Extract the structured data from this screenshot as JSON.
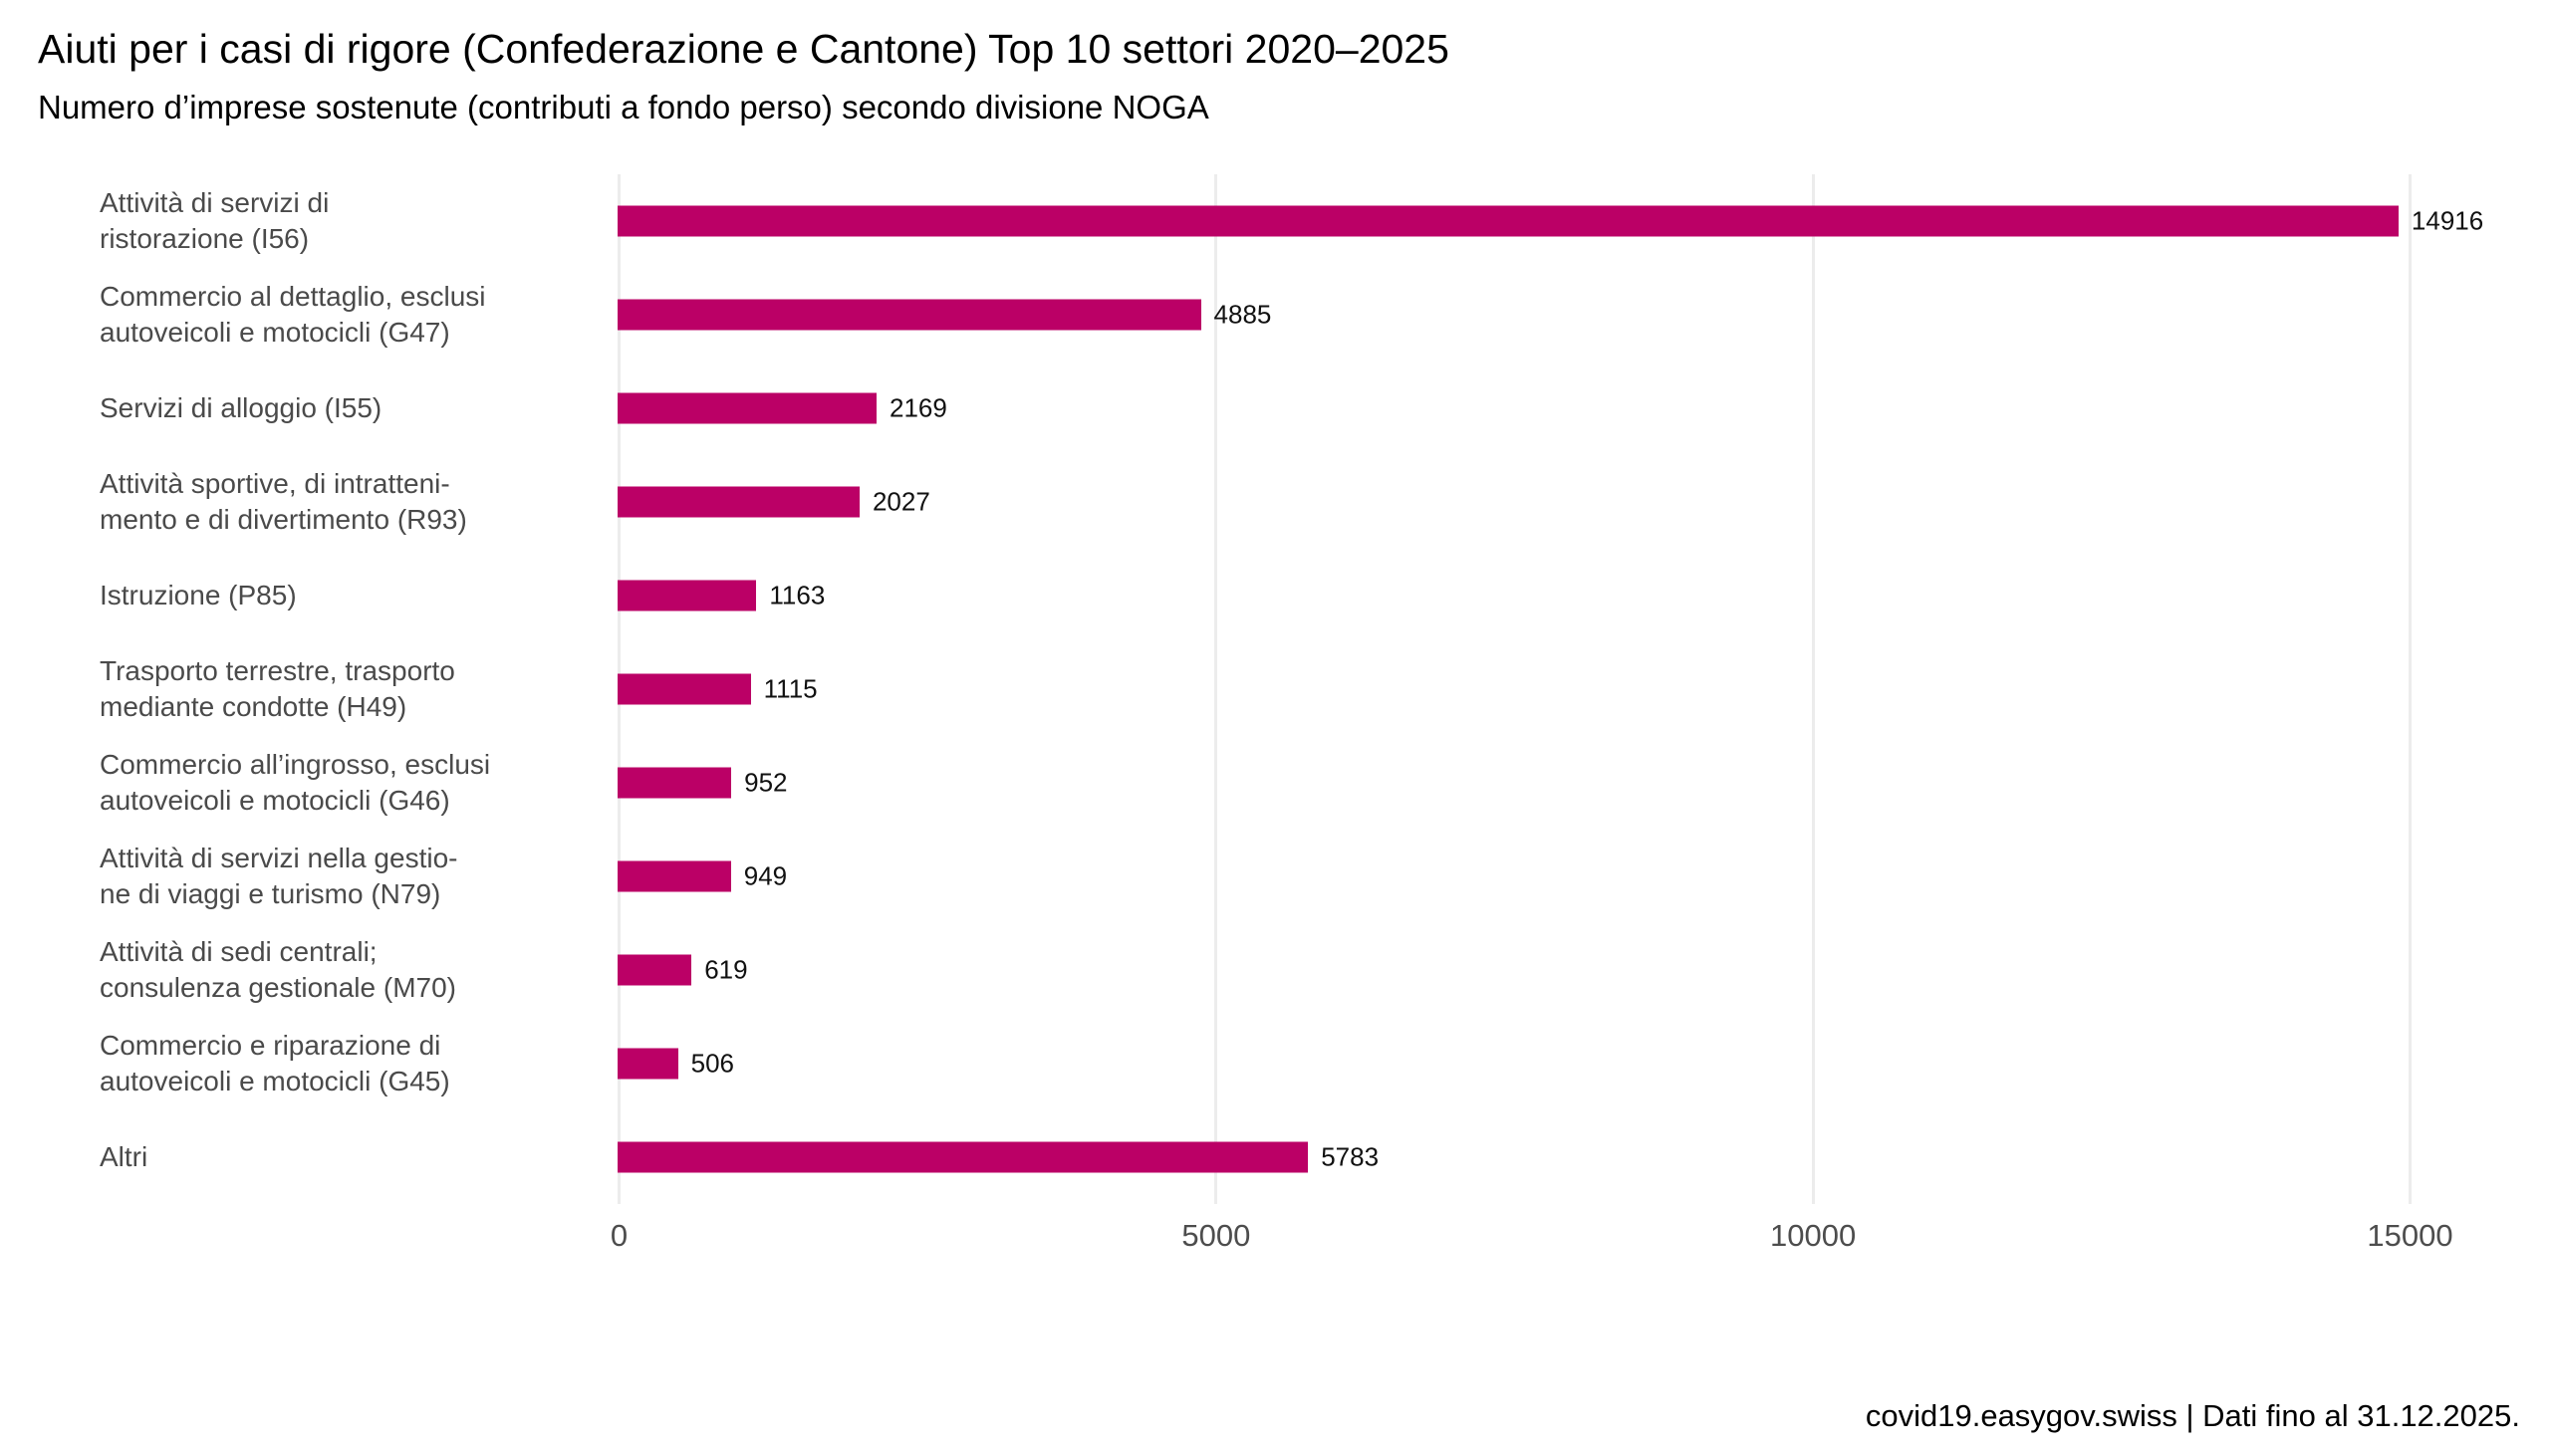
{
  "title": "Aiuti per i casi di rigore (Confederazione e Cantone) Top 10 settori 2020–2025",
  "subtitle": "Numero d’imprese sostenute (contributi a fondo perso) secondo divisione NOGA",
  "footer": {
    "source": "covid19.easygov.swiss | Dati fino al 31.12.2025."
  },
  "colors": {
    "bar": "#BB0066",
    "gridline": "#ECECEC",
    "category_label": "#4A4A4A",
    "tick_label": "#4D4D4D",
    "value_label": "#111111"
  },
  "chart_data": {
    "type": "bar",
    "orientation": "horizontal",
    "title": "Aiuti per i casi di rigore (Confederazione e Cantone) Top 10 settori 2020–2025",
    "subtitle": "Numero d’imprese sostenute (contributi a fondo perso) secondo divisione NOGA",
    "categories": [
      [
        "Attività di servizi di",
        "ristorazione (I56)"
      ],
      [
        "Commercio al dettaglio, esclusi",
        "autoveicoli e motocicli (G47)"
      ],
      [
        "Servizi di alloggio (I55)"
      ],
      [
        "Attività sportive, di intratteni-",
        "mento e di divertimento (R93)"
      ],
      [
        "Istruzione (P85)"
      ],
      [
        "Trasporto terrestre, trasporto",
        "mediante condotte (H49)"
      ],
      [
        "Commercio all’ingrosso, esclusi",
        "autoveicoli e motocicli (G46)"
      ],
      [
        "Attività di servizi nella gestio-",
        "ne di viaggi e turismo (N79)"
      ],
      [
        "Attività di sedi centrali;",
        "consulenza gestionale (M70)"
      ],
      [
        "Commercio e riparazione di",
        "autoveicoli e motocicli (G45)"
      ],
      [
        "Altri"
      ]
    ],
    "values": [
      14916,
      4885,
      2169,
      2027,
      1163,
      1115,
      952,
      949,
      619,
      506,
      5783
    ],
    "x_ticks": [
      0,
      5000,
      10000,
      15000
    ],
    "xlim": [
      0,
      15000
    ],
    "grid": "vertical-only",
    "legend": "none",
    "value_labels": true
  }
}
